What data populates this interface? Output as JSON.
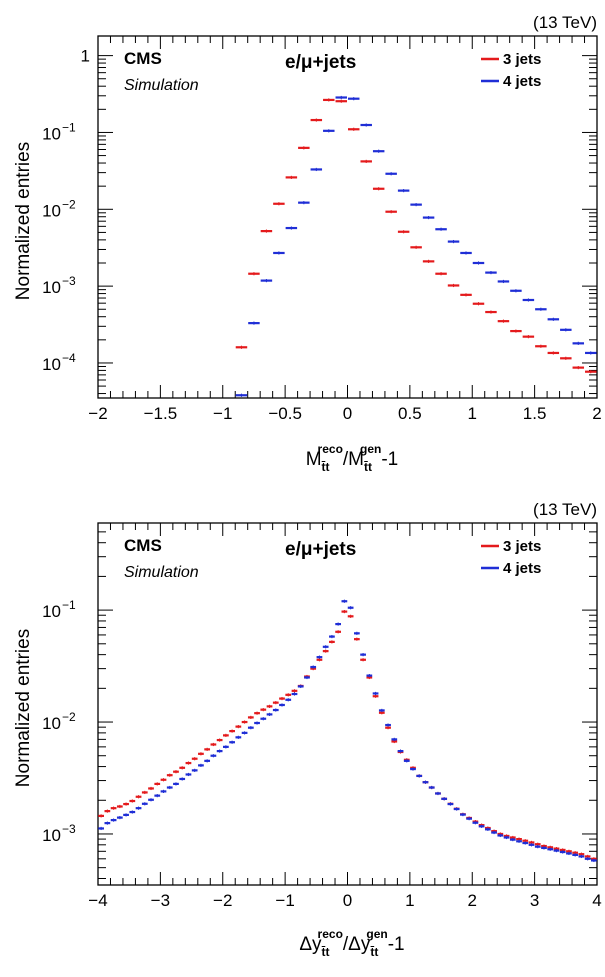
{
  "chart_data": [
    {
      "type": "scatter",
      "energy_label": "(13 TeV)",
      "cms_label": "CMS",
      "sim_label": "Simulation",
      "channel_label": "e/μ+jets",
      "ylabel": "Normalized entries",
      "xlabel_parts": [
        "M",
        "t̄t",
        "reco",
        "/M",
        "t̄t",
        "gen",
        "-1"
      ],
      "xlim": [
        -2,
        2
      ],
      "ylim": [
        3.5e-05,
        1.8
      ],
      "yscale": "log",
      "xticks": [
        {
          "v": -2,
          "label": "−2"
        },
        {
          "v": -1.5,
          "label": "−1.5"
        },
        {
          "v": -1,
          "label": "−1"
        },
        {
          "v": -0.5,
          "label": "−0.5"
        },
        {
          "v": 0,
          "label": "0"
        },
        {
          "v": 0.5,
          "label": "0.5"
        },
        {
          "v": 1,
          "label": "1"
        },
        {
          "v": 1.5,
          "label": "1.5"
        },
        {
          "v": 2,
          "label": "2"
        }
      ],
      "yticks": [
        {
          "v": 1,
          "base": "1",
          "exp": ""
        },
        {
          "v": 0.1,
          "base": "10",
          "exp": "−1"
        },
        {
          "v": 0.01,
          "base": "10",
          "exp": "−2"
        },
        {
          "v": 0.001,
          "base": "10",
          "exp": "−3"
        },
        {
          "v": 0.0001,
          "base": "10",
          "exp": "−4"
        }
      ],
      "bin_halfwidth": 0.05,
      "series": [
        {
          "name": "3 jets",
          "color": "#e41a1c",
          "x": [
            -0.85,
            -0.75,
            -0.65,
            -0.55,
            -0.45,
            -0.35,
            -0.25,
            -0.15,
            -0.05,
            0.05,
            0.15,
            0.25,
            0.35,
            0.45,
            0.55,
            0.65,
            0.75,
            0.85,
            0.95,
            1.05,
            1.15,
            1.25,
            1.35,
            1.45,
            1.55,
            1.65,
            1.75,
            1.85,
            1.95
          ],
          "y": [
            0.00016,
            0.00145,
            0.0052,
            0.0118,
            0.026,
            0.063,
            0.145,
            0.265,
            0.255,
            0.11,
            0.042,
            0.0185,
            0.0093,
            0.0051,
            0.0032,
            0.0021,
            0.00145,
            0.00102,
            0.00077,
            0.00059,
            0.00046,
            0.00035,
            0.00026,
            0.00022,
            0.000165,
            0.000135,
            0.000115,
            8.7e-05,
            7.7e-05
          ]
        },
        {
          "name": "4 jets",
          "color": "#1f2ed6",
          "x": [
            -0.85,
            -0.75,
            -0.65,
            -0.55,
            -0.45,
            -0.35,
            -0.25,
            -0.15,
            -0.05,
            0.05,
            0.15,
            0.25,
            0.35,
            0.45,
            0.55,
            0.65,
            0.75,
            0.85,
            0.95,
            1.05,
            1.15,
            1.25,
            1.35,
            1.45,
            1.55,
            1.65,
            1.75,
            1.85,
            1.95
          ],
          "y": [
            3.8e-05,
            0.00033,
            0.00118,
            0.0027,
            0.0057,
            0.0122,
            0.033,
            0.105,
            0.285,
            0.275,
            0.125,
            0.057,
            0.029,
            0.0175,
            0.0115,
            0.0078,
            0.0055,
            0.0038,
            0.0027,
            0.002,
            0.0015,
            0.00115,
            0.00087,
            0.00066,
            0.0005,
            0.00037,
            0.00027,
            0.00018,
            0.000135
          ]
        }
      ]
    },
    {
      "type": "scatter",
      "energy_label": "(13 TeV)",
      "cms_label": "CMS",
      "sim_label": "Simulation",
      "channel_label": "e/μ+jets",
      "ylabel": "Normalized entries",
      "xlabel_parts": [
        "Δy",
        "t̄t",
        "reco",
        "/Δy",
        "t̄t",
        "gen",
        "-1"
      ],
      "xlim": [
        -4,
        4
      ],
      "ylim": [
        0.00035,
        0.6
      ],
      "yscale": "log",
      "xticks": [
        {
          "v": -4,
          "label": "−4"
        },
        {
          "v": -3,
          "label": "−3"
        },
        {
          "v": -2,
          "label": "−2"
        },
        {
          "v": -1,
          "label": "−1"
        },
        {
          "v": 0,
          "label": "0"
        },
        {
          "v": 1,
          "label": "1"
        },
        {
          "v": 2,
          "label": "2"
        },
        {
          "v": 3,
          "label": "3"
        },
        {
          "v": 4,
          "label": "4"
        }
      ],
      "yticks": [
        {
          "v": 0.1,
          "base": "10",
          "exp": "−1"
        },
        {
          "v": 0.01,
          "base": "10",
          "exp": "−2"
        },
        {
          "v": 0.001,
          "base": "10",
          "exp": "−3"
        }
      ],
      "bin_halfwidth": 0.05,
      "series": [
        {
          "name": "3 jets",
          "color": "#e41a1c",
          "x": [
            -3.95,
            -3.85,
            -3.75,
            -3.65,
            -3.55,
            -3.45,
            -3.35,
            -3.25,
            -3.15,
            -3.05,
            -2.95,
            -2.85,
            -2.75,
            -2.65,
            -2.55,
            -2.45,
            -2.35,
            -2.25,
            -2.15,
            -2.05,
            -1.95,
            -1.85,
            -1.75,
            -1.65,
            -1.55,
            -1.45,
            -1.35,
            -1.25,
            -1.15,
            -1.05,
            -0.95,
            -0.85,
            -0.75,
            -0.65,
            -0.55,
            -0.45,
            -0.35,
            -0.25,
            -0.15,
            -0.05,
            0.05,
            0.15,
            0.25,
            0.35,
            0.45,
            0.55,
            0.65,
            0.75,
            0.85,
            0.95,
            1.05,
            1.15,
            1.25,
            1.35,
            1.45,
            1.55,
            1.65,
            1.75,
            1.85,
            1.95,
            2.05,
            2.15,
            2.25,
            2.35,
            2.45,
            2.55,
            2.65,
            2.75,
            2.85,
            2.95,
            3.05,
            3.15,
            3.25,
            3.35,
            3.45,
            3.55,
            3.65,
            3.75,
            3.85,
            3.95
          ],
          "y": [
            0.00145,
            0.0016,
            0.0017,
            0.00176,
            0.00185,
            0.00197,
            0.00215,
            0.00235,
            0.00255,
            0.0028,
            0.00305,
            0.00335,
            0.0036,
            0.0039,
            0.0043,
            0.0047,
            0.0052,
            0.0057,
            0.0063,
            0.0069,
            0.0076,
            0.0083,
            0.0091,
            0.01,
            0.011,
            0.012,
            0.0129,
            0.0138,
            0.0149,
            0.0162,
            0.0175,
            0.019,
            0.021,
            0.0255,
            0.03,
            0.036,
            0.043,
            0.052,
            0.064,
            0.097,
            0.088,
            0.055,
            0.036,
            0.025,
            0.017,
            0.0121,
            0.0089,
            0.0067,
            0.0054,
            0.0046,
            0.0039,
            0.0033,
            0.0029,
            0.0026,
            0.0023,
            0.00206,
            0.00186,
            0.00168,
            0.0015,
            0.00139,
            0.00129,
            0.0012,
            0.00113,
            0.00106,
            0.001,
            0.00096,
            0.00093,
            0.0009,
            0.00087,
            0.00084,
            0.00081,
            0.00078,
            0.00076,
            0.00074,
            0.00072,
            0.0007,
            0.00068,
            0.00066,
            0.00063,
            0.0006
          ]
        },
        {
          "name": "4 jets",
          "color": "#1f2ed6",
          "x": [
            -3.95,
            -3.85,
            -3.75,
            -3.65,
            -3.55,
            -3.45,
            -3.35,
            -3.25,
            -3.15,
            -3.05,
            -2.95,
            -2.85,
            -2.75,
            -2.65,
            -2.55,
            -2.45,
            -2.35,
            -2.25,
            -2.15,
            -2.05,
            -1.95,
            -1.85,
            -1.75,
            -1.65,
            -1.55,
            -1.45,
            -1.35,
            -1.25,
            -1.15,
            -1.05,
            -0.95,
            -0.85,
            -0.75,
            -0.65,
            -0.55,
            -0.45,
            -0.35,
            -0.25,
            -0.15,
            -0.05,
            0.05,
            0.15,
            0.25,
            0.35,
            0.45,
            0.55,
            0.65,
            0.75,
            0.85,
            0.95,
            1.05,
            1.15,
            1.25,
            1.35,
            1.45,
            1.55,
            1.65,
            1.75,
            1.85,
            1.95,
            2.05,
            2.15,
            2.25,
            2.35,
            2.45,
            2.55,
            2.65,
            2.75,
            2.85,
            2.95,
            3.05,
            3.15,
            3.25,
            3.35,
            3.45,
            3.55,
            3.65,
            3.75,
            3.85,
            3.95
          ],
          "y": [
            0.00112,
            0.00125,
            0.00133,
            0.0014,
            0.00148,
            0.00157,
            0.0017,
            0.00186,
            0.00202,
            0.0022,
            0.0024,
            0.0026,
            0.0028,
            0.0031,
            0.0034,
            0.0037,
            0.0041,
            0.0045,
            0.005,
            0.0055,
            0.006,
            0.0066,
            0.0073,
            0.008,
            0.0089,
            0.0098,
            0.0107,
            0.0117,
            0.0128,
            0.0142,
            0.0158,
            0.0178,
            0.0208,
            0.025,
            0.031,
            0.038,
            0.047,
            0.058,
            0.075,
            0.12,
            0.105,
            0.062,
            0.04,
            0.026,
            0.018,
            0.0127,
            0.0094,
            0.007,
            0.0055,
            0.0045,
            0.0038,
            0.0033,
            0.0029,
            0.0026,
            0.0023,
            0.00206,
            0.00185,
            0.00167,
            0.00149,
            0.00137,
            0.00126,
            0.00117,
            0.0011,
            0.00103,
            0.00097,
            0.00093,
            0.00089,
            0.00086,
            0.00083,
            0.0008,
            0.00077,
            0.00075,
            0.00073,
            0.00071,
            0.00069,
            0.00067,
            0.00065,
            0.00063,
            0.0006,
            0.00058
          ]
        }
      ]
    }
  ]
}
